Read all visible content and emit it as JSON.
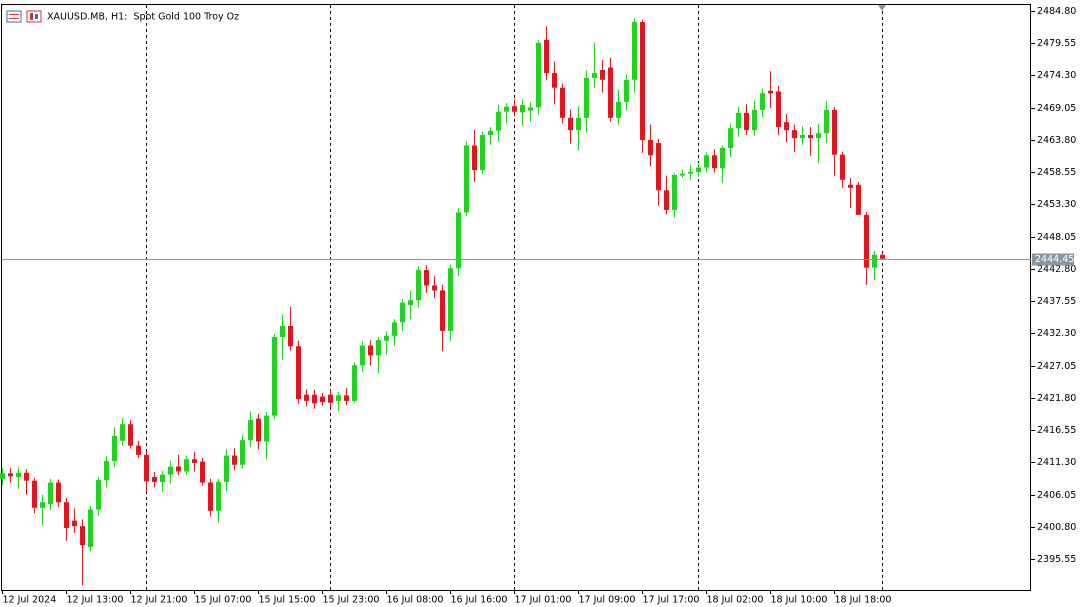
{
  "chart_data": {
    "type": "candlestick",
    "title": "XAUUSD.MB, H1:  Spot Gold 100 Troy Oz",
    "x": [
      "12 Jul 2024",
      null,
      null,
      null,
      null,
      null,
      null,
      null,
      "12 Jul 13:00",
      null,
      null,
      null,
      null,
      null,
      null,
      null,
      "12 Jul 21:00",
      null,
      null,
      null,
      null,
      null,
      null,
      null,
      "15 Jul 07:00",
      null,
      null,
      null,
      null,
      null,
      null,
      null,
      "15 Jul 15:00",
      null,
      null,
      null,
      null,
      null,
      null,
      null,
      "15 Jul 23:00",
      null,
      null,
      null,
      null,
      null,
      null,
      null,
      "16 Jul 08:00",
      null,
      null,
      null,
      null,
      null,
      null,
      null,
      "16 Jul 16:00",
      null,
      null,
      null,
      null,
      null,
      null,
      null,
      "17 Jul 01:00",
      null,
      null,
      null,
      null,
      null,
      null,
      null,
      "17 Jul 09:00",
      null,
      null,
      null,
      null,
      null,
      null,
      null,
      "17 Jul 17:00",
      null,
      null,
      null,
      null,
      null,
      null,
      null,
      "18 Jul 02:00",
      null,
      null,
      null,
      null,
      null,
      null,
      null,
      "18 Jul 10:00",
      null,
      null,
      null,
      null,
      null,
      null,
      null,
      "18 Jul 18:00",
      null,
      null,
      null,
      null,
      null,
      null
    ],
    "open": [
      2408.6,
      2409.5,
      2408.9,
      2409.6,
      2408.3,
      2403.9,
      2404.5,
      2408.0,
      2404.8,
      2401.8,
      2400.9,
      2397.5,
      2403.6,
      2408.4,
      2411.5,
      2414.8,
      2417.5,
      2414.0,
      2412.5,
      2408.9,
      2408.1,
      2409.3,
      2410.6,
      2409.8,
      2411.8,
      2411.4,
      2408.0,
      2403.4,
      2408.1,
      2412.4,
      2410.9,
      2414.9,
      2418.4,
      2414.7,
      2418.9,
      2431.7,
      2433.5,
      2430.2,
      2422.3,
      2422.3,
      2422.0,
      2422.3,
      2421.3,
      2422.2,
      2421.3,
      2427.1,
      2430.3,
      2428.7,
      2431.1,
      2431.9,
      2434.1,
      2436.9,
      2437.7,
      2442.6,
      2440.1,
      2439.3,
      2432.7,
      2442.9,
      2452.0,
      2462.9,
      2458.9,
      2464.6,
      2465.3,
      2468.4,
      2469.3,
      2468.3,
      2468.6,
      2469.1,
      2480.1,
      2474.7,
      2472.3,
      2467.4,
      2465.4,
      2467.4,
      2473.9,
      2475.2,
      2475.6,
      2467.4,
      2470.0,
      2473.6,
      2483.0,
      2463.8,
      2463.3,
      2455.6,
      2452.4,
      2458.0,
      2458.3,
      2458.6,
      2459.3,
      2461.3,
      2459.2,
      2462.5,
      2465.7,
      2468.2,
      2465.4,
      2468.7,
      2471.8,
      2471.7,
      2466.7,
      2465.4,
      2464.1,
      2464.6,
      2464.1,
      2464.9,
      2468.7,
      2461.4,
      2456.5,
      2456.5,
      2451.6,
      2443.0,
      2445.1
    ],
    "high": [
      2410.3,
      2410.4,
      2410.6,
      2410.2,
      2408.8,
      2406.0,
      2408.6,
      2408.5,
      2405.5,
      2403.8,
      2402.0,
      2404.2,
      2408.9,
      2412.3,
      2417.0,
      2418.5,
      2418.2,
      2414.8,
      2413.0,
      2409.7,
      2409.9,
      2411.6,
      2412.5,
      2412.4,
      2413.0,
      2412.0,
      2408.6,
      2408.6,
      2413.4,
      2413.6,
      2415.8,
      2419.6,
      2419.2,
      2419.5,
      2432.2,
      2435.4,
      2436.6,
      2431.1,
      2423.2,
      2423.1,
      2422.6,
      2423.0,
      2422.8,
      2423.4,
      2427.6,
      2431.0,
      2431.2,
      2431.7,
      2432.6,
      2434.6,
      2437.9,
      2439.3,
      2443.3,
      2443.4,
      2441.6,
      2440.2,
      2443.5,
      2452.7,
      2463.6,
      2465.5,
      2465.2,
      2465.9,
      2469.5,
      2469.8,
      2470.5,
      2470.4,
      2469.9,
      2480.1,
      2482.3,
      2476.6,
      2473.0,
      2468.8,
      2469.3,
      2475.1,
      2479.7,
      2476.8,
      2477.2,
      2472.0,
      2474.5,
      2483.6,
      2483.4,
      2466.3,
      2464.0,
      2458.0,
      2458.4,
      2459.0,
      2459.7,
      2460.1,
      2461.8,
      2462.3,
      2462.9,
      2466.5,
      2469.2,
      2469.6,
      2470.2,
      2472.2,
      2475.0,
      2472.6,
      2468.0,
      2466.3,
      2466.0,
      2465.9,
      2466.4,
      2470.2,
      2469.2,
      2461.9,
      2457.6,
      2457.0,
      2452.1,
      2445.7,
      2445.4
    ],
    "low": [
      2407.6,
      2408.0,
      2407.0,
      2406.0,
      2403.0,
      2401.0,
      2403.5,
      2404.0,
      2398.5,
      2399.8,
      2391.3,
      2396.8,
      2402.6,
      2407.2,
      2410.5,
      2414.0,
      2413.5,
      2412.0,
      2406.5,
      2407.2,
      2406.5,
      2407.8,
      2409.2,
      2409.3,
      2409.8,
      2407.5,
      2402.5,
      2401.5,
      2406.6,
      2410.0,
      2410.3,
      2413.8,
      2413.4,
      2411.8,
      2418.3,
      2428.0,
      2429.5,
      2420.8,
      2420.4,
      2420.0,
      2420.5,
      2420.3,
      2419.7,
      2420.6,
      2421.0,
      2426.0,
      2427.1,
      2425.8,
      2428.9,
      2430.3,
      2432.7,
      2434.6,
      2436.5,
      2438.9,
      2438.1,
      2429.4,
      2431.0,
      2441.6,
      2451.4,
      2457.0,
      2458.2,
      2463.0,
      2463.5,
      2466.5,
      2467.8,
      2466.1,
      2466.8,
      2468.0,
      2473.5,
      2469.6,
      2466.5,
      2463.2,
      2462.1,
      2465.0,
      2472.3,
      2471.5,
      2466.8,
      2466.3,
      2468.6,
      2471.5,
      2461.7,
      2459.5,
      2453.1,
      2451.7,
      2451.2,
      2457.6,
      2457.3,
      2457.8,
      2458.5,
      2458.5,
      2456.8,
      2461.0,
      2464.3,
      2464.6,
      2464.5,
      2467.5,
      2469.0,
      2464.6,
      2463.4,
      2461.8,
      2463.0,
      2461.2,
      2460.0,
      2463.3,
      2458.0,
      2456.0,
      2452.7,
      2451.6,
      2440.2,
      2441.0,
      2444.3
    ],
    "close": [
      2409.5,
      2409.0,
      2409.6,
      2408.3,
      2403.9,
      2404.8,
      2408.0,
      2404.8,
      2400.6,
      2400.9,
      2397.8,
      2403.6,
      2408.4,
      2411.5,
      2415.6,
      2417.5,
      2414.0,
      2412.5,
      2408.2,
      2408.1,
      2409.3,
      2410.6,
      2409.8,
      2411.8,
      2411.2,
      2408.0,
      2403.4,
      2408.1,
      2412.4,
      2410.9,
      2414.9,
      2418.2,
      2414.7,
      2418.9,
      2431.7,
      2433.5,
      2430.2,
      2421.6,
      2421.3,
      2420.9,
      2421.1,
      2421.0,
      2422.2,
      2421.3,
      2427.1,
      2430.3,
      2428.7,
      2431.2,
      2431.9,
      2434.1,
      2437.3,
      2437.7,
      2442.6,
      2440.1,
      2439.3,
      2432.7,
      2442.9,
      2452.0,
      2462.9,
      2458.9,
      2464.6,
      2465.3,
      2468.4,
      2469.2,
      2468.4,
      2469.5,
      2469.1,
      2479.6,
      2474.7,
      2472.3,
      2467.4,
      2465.4,
      2467.4,
      2473.9,
      2474.7,
      2473.6,
      2467.4,
      2470.0,
      2473.6,
      2483.0,
      2463.8,
      2461.3,
      2455.6,
      2452.4,
      2458.1,
      2458.3,
      2458.6,
      2459.3,
      2461.3,
      2459.2,
      2462.5,
      2465.7,
      2468.2,
      2465.4,
      2468.7,
      2471.4,
      2471.4,
      2465.9,
      2465.4,
      2464.1,
      2464.6,
      2464.1,
      2464.9,
      2468.7,
      2461.4,
      2457.3,
      2456.0,
      2451.6,
      2443.0,
      2445.1,
      2444.45
    ],
    "up_color": "#1ed41e",
    "down_color": "#e5141c",
    "price_line_color": "#8a97a3",
    "current_price": 2444.45,
    "ylim": [
      2390.5,
      2485.78
    ],
    "yticks": [
      {
        "value": 2484.8,
        "label": "2484.80"
      },
      2479.55,
      {
        "value": 2474.3,
        "label": "2474.30"
      },
      2469.05,
      {
        "value": 2463.8,
        "label": "2463.80"
      },
      2458.55,
      {
        "value": 2453.3,
        "label": "2453.30"
      },
      2448.05,
      {
        "value": 2442.8,
        "label": "2442.80"
      },
      2437.55,
      {
        "value": 2432.3,
        "label": "2432.30"
      },
      2427.05,
      {
        "value": 2421.8,
        "label": "2421.80"
      },
      2416.55,
      {
        "value": 2411.3,
        "label": "2411.30"
      },
      2406.05,
      {
        "value": 2400.8,
        "label": "2400.80"
      },
      2395.55
    ],
    "grid": false
  }
}
